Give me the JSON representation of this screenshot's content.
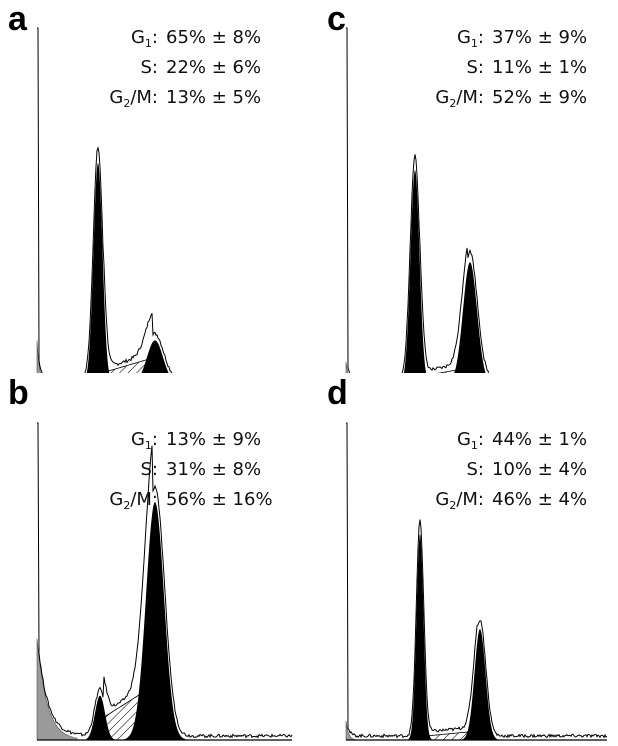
{
  "chart_data": [
    {
      "type": "area",
      "panel": "a",
      "stats": [
        {
          "phase": "G",
          "sub": "1",
          "suffix": ":",
          "value": "65% ± 8%"
        },
        {
          "phase": "S",
          "sub": "",
          "suffix": ":",
          "value": "22% ± 6%"
        },
        {
          "phase": "G",
          "sub": "2",
          "suffix": "/M:",
          "value": "13% ± 5%"
        }
      ],
      "peaks": {
        "debris": 0.12,
        "g1": 0.62,
        "s": 0.05,
        "g2m": 0.12
      }
    },
    {
      "type": "area",
      "panel": "b",
      "stats": [
        {
          "phase": "G",
          "sub": "1",
          "suffix": ":",
          "value": "13% ± 9%"
        },
        {
          "phase": "S",
          "sub": "",
          "suffix": ":",
          "value": "31% ± 8%"
        },
        {
          "phase": "G",
          "sub": "2",
          "suffix": "/M:",
          "value": "56% ± 16%"
        }
      ],
      "peaks": {
        "debris": 0.32,
        "g1": 0.14,
        "s": 0.12,
        "g2m": 0.75
      }
    },
    {
      "type": "area",
      "panel": "c",
      "stats": [
        {
          "phase": "G",
          "sub": "1",
          "suffix": ":",
          "value": "37% ± 9%"
        },
        {
          "phase": "S",
          "sub": "",
          "suffix": ":",
          "value": "11% ± 1%"
        },
        {
          "phase": "G",
          "sub": "2",
          "suffix": "/M:",
          "value": "52% ± 9%"
        }
      ],
      "peaks": {
        "debris": 0.06,
        "g1": 0.6,
        "s": 0.03,
        "g2m": 0.34
      }
    },
    {
      "type": "area",
      "panel": "d",
      "stats": [
        {
          "phase": "G",
          "sub": "1",
          "suffix": ":",
          "value": "44% ± 1%"
        },
        {
          "phase": "S",
          "sub": "",
          "suffix": ":",
          "value": "10% ± 4%"
        },
        {
          "phase": "G",
          "sub": "2",
          "suffix": "/M:",
          "value": "46% ± 4%"
        }
      ],
      "peaks": {
        "debris": 0.06,
        "g1": 0.65,
        "s": 0.02,
        "g2m": 0.35
      }
    }
  ]
}
